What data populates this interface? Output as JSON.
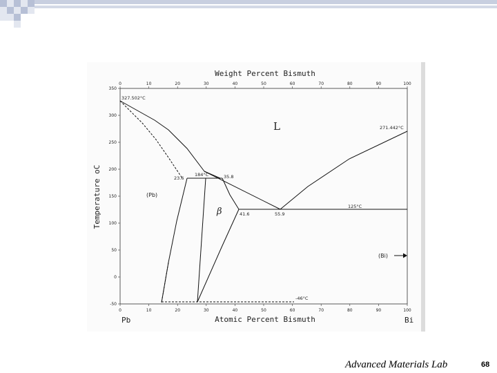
{
  "slide": {
    "footer": "Advanced Materials Lab",
    "page_number": "68"
  },
  "diagram": {
    "top_axis_title": "Weight Percent Bismuth",
    "bottom_axis_title": "Atomic Percent Bismuth",
    "y_axis_title": "Temperature",
    "y_axis_unit": "oC",
    "left_element": "Pb",
    "right_element": "Bi",
    "top_ticks": [
      "0",
      "10",
      "20",
      "30",
      "40",
      "50",
      "60",
      "70",
      "80",
      "90",
      "100"
    ],
    "bottom_ticks": [
      "0",
      "10",
      "20",
      "30",
      "40",
      "50",
      "60",
      "70",
      "80",
      "90",
      "100"
    ],
    "y_ticks": [
      "350",
      "300",
      "250",
      "200",
      "150",
      "100",
      "50",
      "0",
      "-50"
    ],
    "labels": {
      "pb_melting": "327.502°C",
      "bi_melting": "271.442°C",
      "liquid": "L",
      "pb_phase": "(Pb)",
      "beta_phase": "β",
      "bi_phase": "(Bi)",
      "peritectic_temp": "184°C",
      "peritectic_left": "23.6",
      "peritectic_right": "35.8",
      "eutectic_temp": "125°C",
      "eutectic_left": "41.6",
      "eutectic_point": "55.9",
      "low_temp": "-46°C"
    }
  }
}
